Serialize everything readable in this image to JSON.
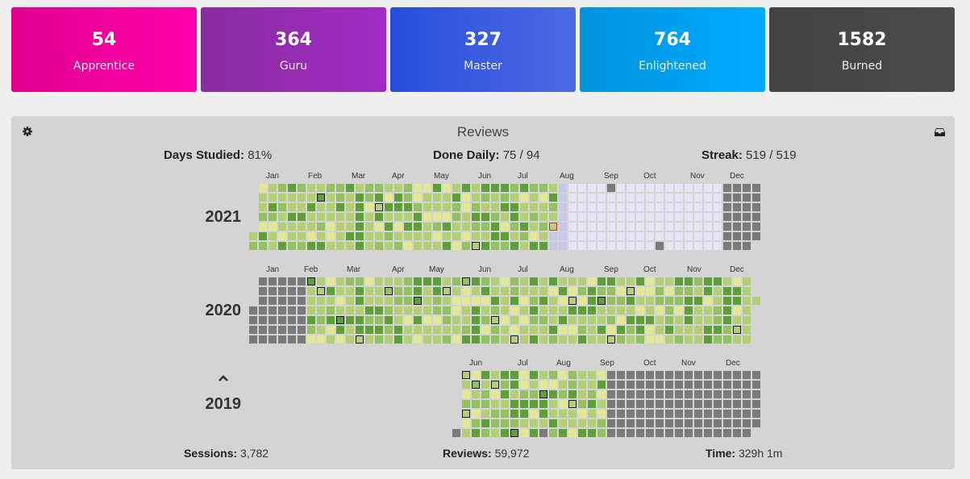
{
  "srs_stages": [
    {
      "count": "54",
      "label": "Apprentice",
      "color_from": "#e0008e",
      "color_to": "#ff00aa"
    },
    {
      "count": "364",
      "label": "Guru",
      "color_from": "#882d9e",
      "color_to": "#a12bc4"
    },
    {
      "count": "327",
      "label": "Master",
      "color_from": "#294ddb",
      "color_to": "#4b6be2"
    },
    {
      "count": "764",
      "label": "Enlightened",
      "color_from": "#0093dd",
      "color_to": "#00aaff"
    },
    {
      "count": "1582",
      "label": "Burned",
      "color_from": "#434343",
      "color_to": "#4a4a4a"
    }
  ],
  "reviews_panel": {
    "title": "Reviews",
    "settings_icon": "gear-icon",
    "inbox_icon": "inbox-icon",
    "days_studied": {
      "label": "Days Studied:",
      "value": "81%"
    },
    "done_daily": {
      "label": "Done Daily:",
      "value": "75 / 94"
    },
    "streak": {
      "label": "Streak:",
      "value": "519 / 519"
    },
    "sessions": {
      "label": "Sessions:",
      "value": "3,782"
    },
    "reviews": {
      "label": "Reviews:",
      "value": "59,972"
    },
    "time": {
      "label": "Time:",
      "value": "329h 1m"
    },
    "colors": {
      "empty": "#7a7a7a",
      "level1": "#e3e898",
      "level2": "#b3cf78",
      "level3": "#93c063",
      "level4": "#5e9e3b",
      "future": "#e6e6f6",
      "future_edge": "#c8c8ea"
    },
    "years": [
      {
        "year": "2021",
        "months": [
          "Jan",
          "Feb",
          "Mar",
          "Apr",
          "May",
          "Jun",
          "Jul",
          "Aug",
          "Sep",
          "Oct",
          "Nov",
          "Dec"
        ],
        "weeks_studied": 32,
        "today_week": 31,
        "today_day": 4,
        "first_day_offset": 5
      },
      {
        "year": "2020",
        "months": [
          "Jan",
          "Feb",
          "Mar",
          "Apr",
          "May",
          "Jun",
          "Jul",
          "Aug",
          "Sep",
          "Oct",
          "Nov",
          "Dec"
        ],
        "first_day_offset": 3
      },
      {
        "year": "2019",
        "months": [
          "Jun",
          "Jul",
          "Aug",
          "Sep",
          "Oct",
          "Nov",
          "Dec"
        ],
        "first_day_offset": 1
      }
    ]
  }
}
